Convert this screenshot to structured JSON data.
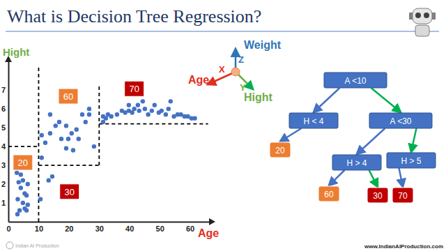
{
  "slide": {
    "title": "What is Decision Tree Regression?",
    "brand": "Indian AI Production",
    "website": "www.IndianAIProduction.com"
  },
  "chart_data": {
    "type": "scatter",
    "xlabel": "Age",
    "ylabel": "Hight",
    "color": "#4472c4",
    "x": [
      2.8,
      3.4,
      4.1,
      3.1,
      4.8,
      5.4,
      3.7,
      6.0,
      6.4,
      5.4,
      4.1,
      3.0,
      6.0,
      6.4,
      4.8,
      10.6,
      13.3,
      14.5,
      11,
      12.2,
      11,
      13.8,
      15.6,
      16.8,
      13.8,
      17.5,
      19.1,
      19.8,
      21.4,
      20.9,
      22.5,
      24.4,
      25.5,
      26.7,
      28.3,
      26.7,
      23.2,
      19.1,
      31.3,
      32.2,
      34,
      35.9,
      37.5,
      38.6,
      39.8,
      40.9,
      41.6,
      42.8,
      43.2,
      44.4,
      45.1,
      46.2,
      47.4,
      48.3,
      49.7,
      50.6,
      52,
      52.9,
      53.6,
      54.7,
      55.9,
      57,
      58.2,
      59.3,
      60.5,
      61.6,
      31.3,
      32.9,
      39.8
    ],
    "values": [
      2.6,
      2.1,
      1.8,
      1.2,
      1.0,
      0.7,
      0.6,
      1.4,
      0.9,
      1.5,
      2.5,
      0.4,
      0.6,
      2.0,
      2.2,
      1.2,
      2.2,
      2.4,
      3.4,
      4.2,
      4.6,
      4.7,
      5.1,
      5.3,
      5.7,
      4.4,
      3.9,
      4.4,
      3.8,
      4.7,
      4.9,
      5.7,
      5.3,
      5.7,
      4.0,
      6.0,
      4.4,
      5.1,
      5.3,
      5.5,
      5.6,
      5.7,
      5.9,
      5.8,
      5.9,
      5.8,
      6.0,
      6.2,
      5.9,
      6.4,
      6.0,
      5.7,
      5.9,
      6.2,
      5.8,
      5.9,
      5.7,
      6.0,
      6.4,
      5.6,
      5.7,
      5.7,
      5.6,
      5.6,
      5.5,
      5.5,
      5.6,
      5.7,
      6.2
    ],
    "xlim": [
      0,
      67
    ],
    "ylim": [
      0,
      8.6
    ],
    "xticks": [
      0,
      10,
      20,
      30,
      40,
      50,
      60
    ],
    "yticks": [
      1,
      2,
      3,
      4,
      5,
      6,
      7
    ],
    "grid": false,
    "splits": [
      {
        "axis": "x",
        "value": 10,
        "from": 0,
        "to": 8.3
      },
      {
        "axis": "y",
        "value": 4,
        "from": 0,
        "to": 10
      },
      {
        "axis": "x",
        "value": 30,
        "from": 3,
        "to": 7.2
      },
      {
        "axis": "y",
        "value": 3,
        "from": 10,
        "to": 30
      },
      {
        "axis": "y",
        "value": 5.2,
        "from": 30,
        "to": 66
      }
    ],
    "regions": [
      {
        "value": 20,
        "x": 4.8,
        "y": 3.15,
        "color": "#ed7d31"
      },
      {
        "value": 60,
        "x": 19.8,
        "y": 6.67,
        "color": "#ed7d31"
      },
      {
        "value": 70,
        "x": 41.6,
        "y": 7.07,
        "color": "#c00000"
      },
      {
        "value": 30,
        "x": 20.2,
        "y": 1.6,
        "color": "#c00000"
      }
    ]
  },
  "axes_icon": {
    "z": "Z",
    "z_title": "Weight",
    "x": "X",
    "x_title": "Age",
    "y": "Y",
    "y_title": "Hight"
  },
  "tree": {
    "label": "A <10",
    "children": [
      {
        "label": "H < 4",
        "children": [
          {
            "label": "20",
            "color": "#ed7d31"
          }
        ]
      },
      {
        "label": "A <30",
        "children": [
          {
            "label": "H > 4",
            "children": [
              {
                "label": "60",
                "color": "#ed7d31"
              },
              {
                "label": "30",
                "color": "#c00000"
              }
            ]
          },
          {
            "label": "H > 5",
            "children": [
              {
                "label": "70",
                "color": "#c00000"
              }
            ]
          }
        ]
      }
    ]
  }
}
